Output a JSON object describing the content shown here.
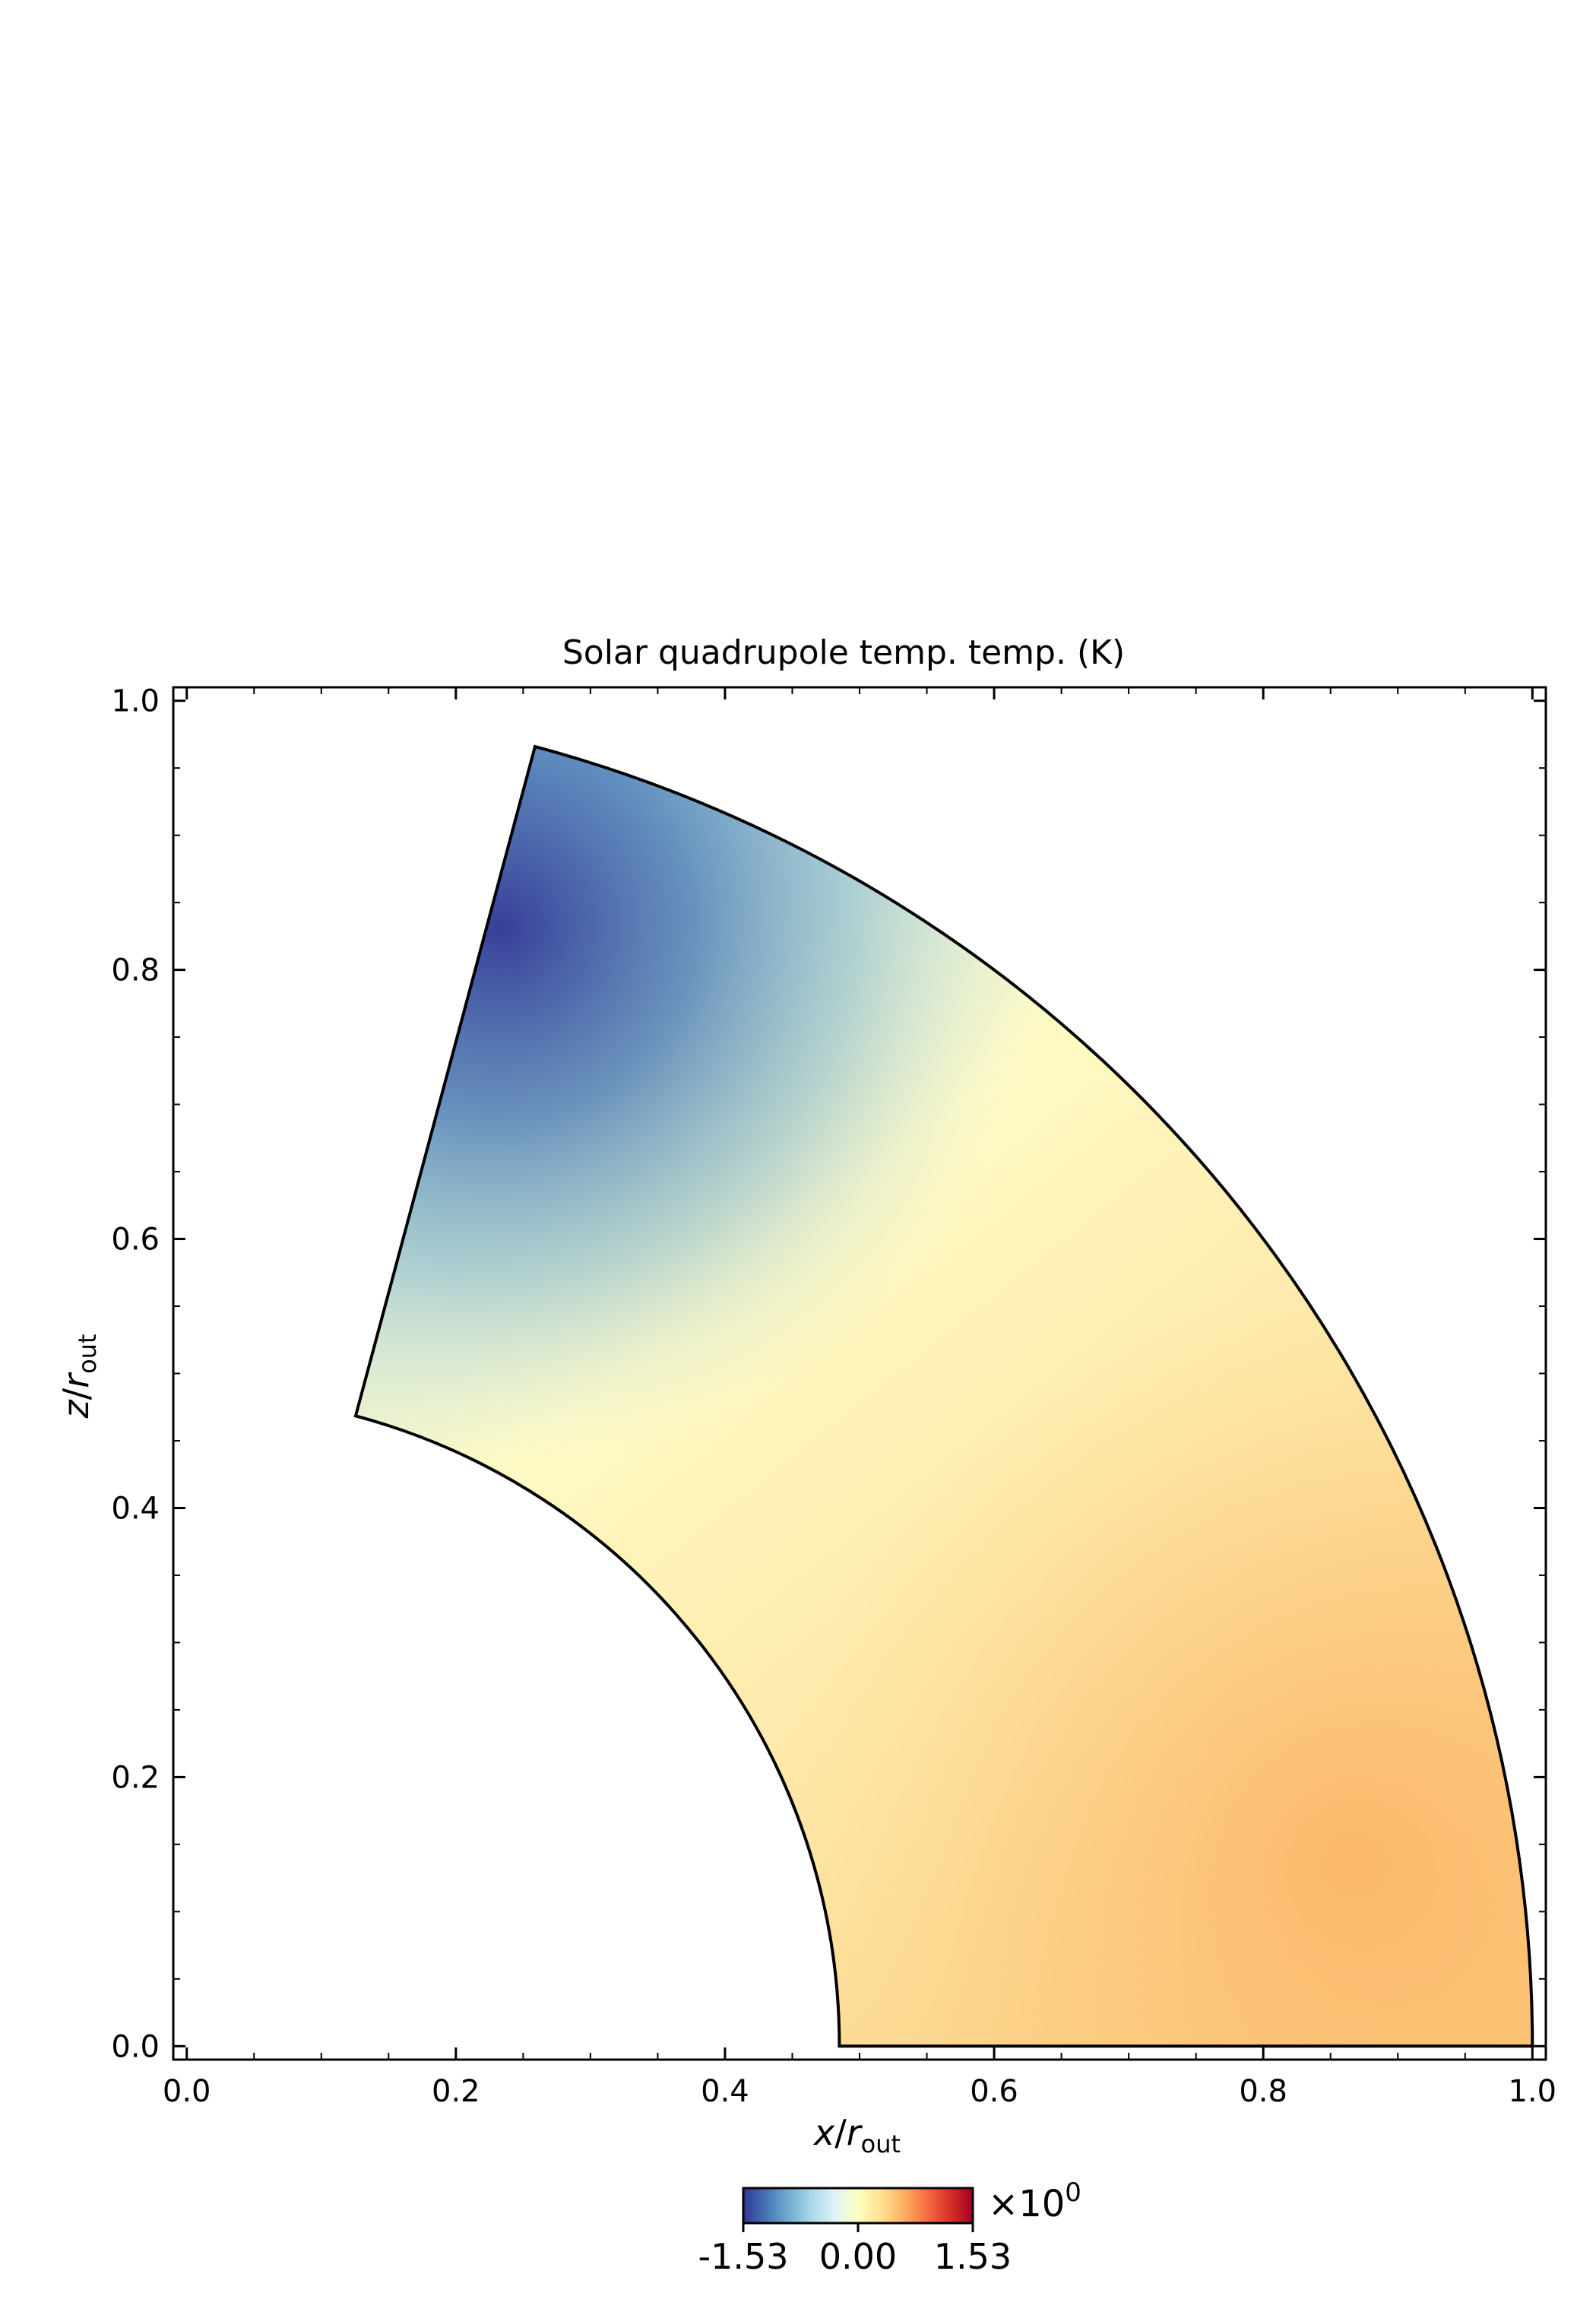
{
  "chart_data": {
    "type": "heatmap",
    "title": "Solar quadrupole temp. temp. (K)",
    "xlabel": {
      "var": "x",
      "sub": "out"
    },
    "ylabel": {
      "var": "z",
      "sub": "out"
    },
    "xlim": [
      -0.01,
      1.01
    ],
    "ylim": [
      -0.01,
      1.01
    ],
    "x_ticks": [
      0.0,
      0.2,
      0.4,
      0.6,
      0.8,
      1.0
    ],
    "x_tick_labels": [
      "0.0",
      "0.2",
      "0.4",
      "0.6",
      "0.8",
      "1.0"
    ],
    "y_ticks": [
      0.0,
      0.2,
      0.4,
      0.6,
      0.8,
      1.0
    ],
    "y_tick_labels": [
      "0.0",
      "0.2",
      "0.4",
      "0.6",
      "0.8",
      "1.0"
    ],
    "domain": {
      "shape": "annular-sector",
      "r_inner": 0.485,
      "r_outer": 1.0,
      "theta_min_deg": 0,
      "theta_max_deg": 75
    },
    "field": {
      "description_points": [
        {
          "x": 0.3,
          "z": 0.85,
          "value": -1.3
        },
        {
          "x": 0.2,
          "z": 0.7,
          "value": -1.45
        },
        {
          "x": 0.2,
          "z": 0.55,
          "value": -0.6
        },
        {
          "x": 0.45,
          "z": 0.6,
          "value": 0.0
        },
        {
          "x": 0.6,
          "z": 0.2,
          "value": 0.3
        },
        {
          "x": 0.85,
          "z": 0.1,
          "value": 0.6
        }
      ]
    },
    "colorbar": {
      "cmap": "RdYlBu_r",
      "min": -1.53,
      "max": 1.53,
      "ticks": [
        -1.53,
        0.0,
        1.53
      ],
      "tick_labels": [
        "-1.53",
        "0.00",
        "1.53"
      ],
      "multiplier_base": "×10",
      "multiplier_exp": "0"
    },
    "grid": false
  }
}
